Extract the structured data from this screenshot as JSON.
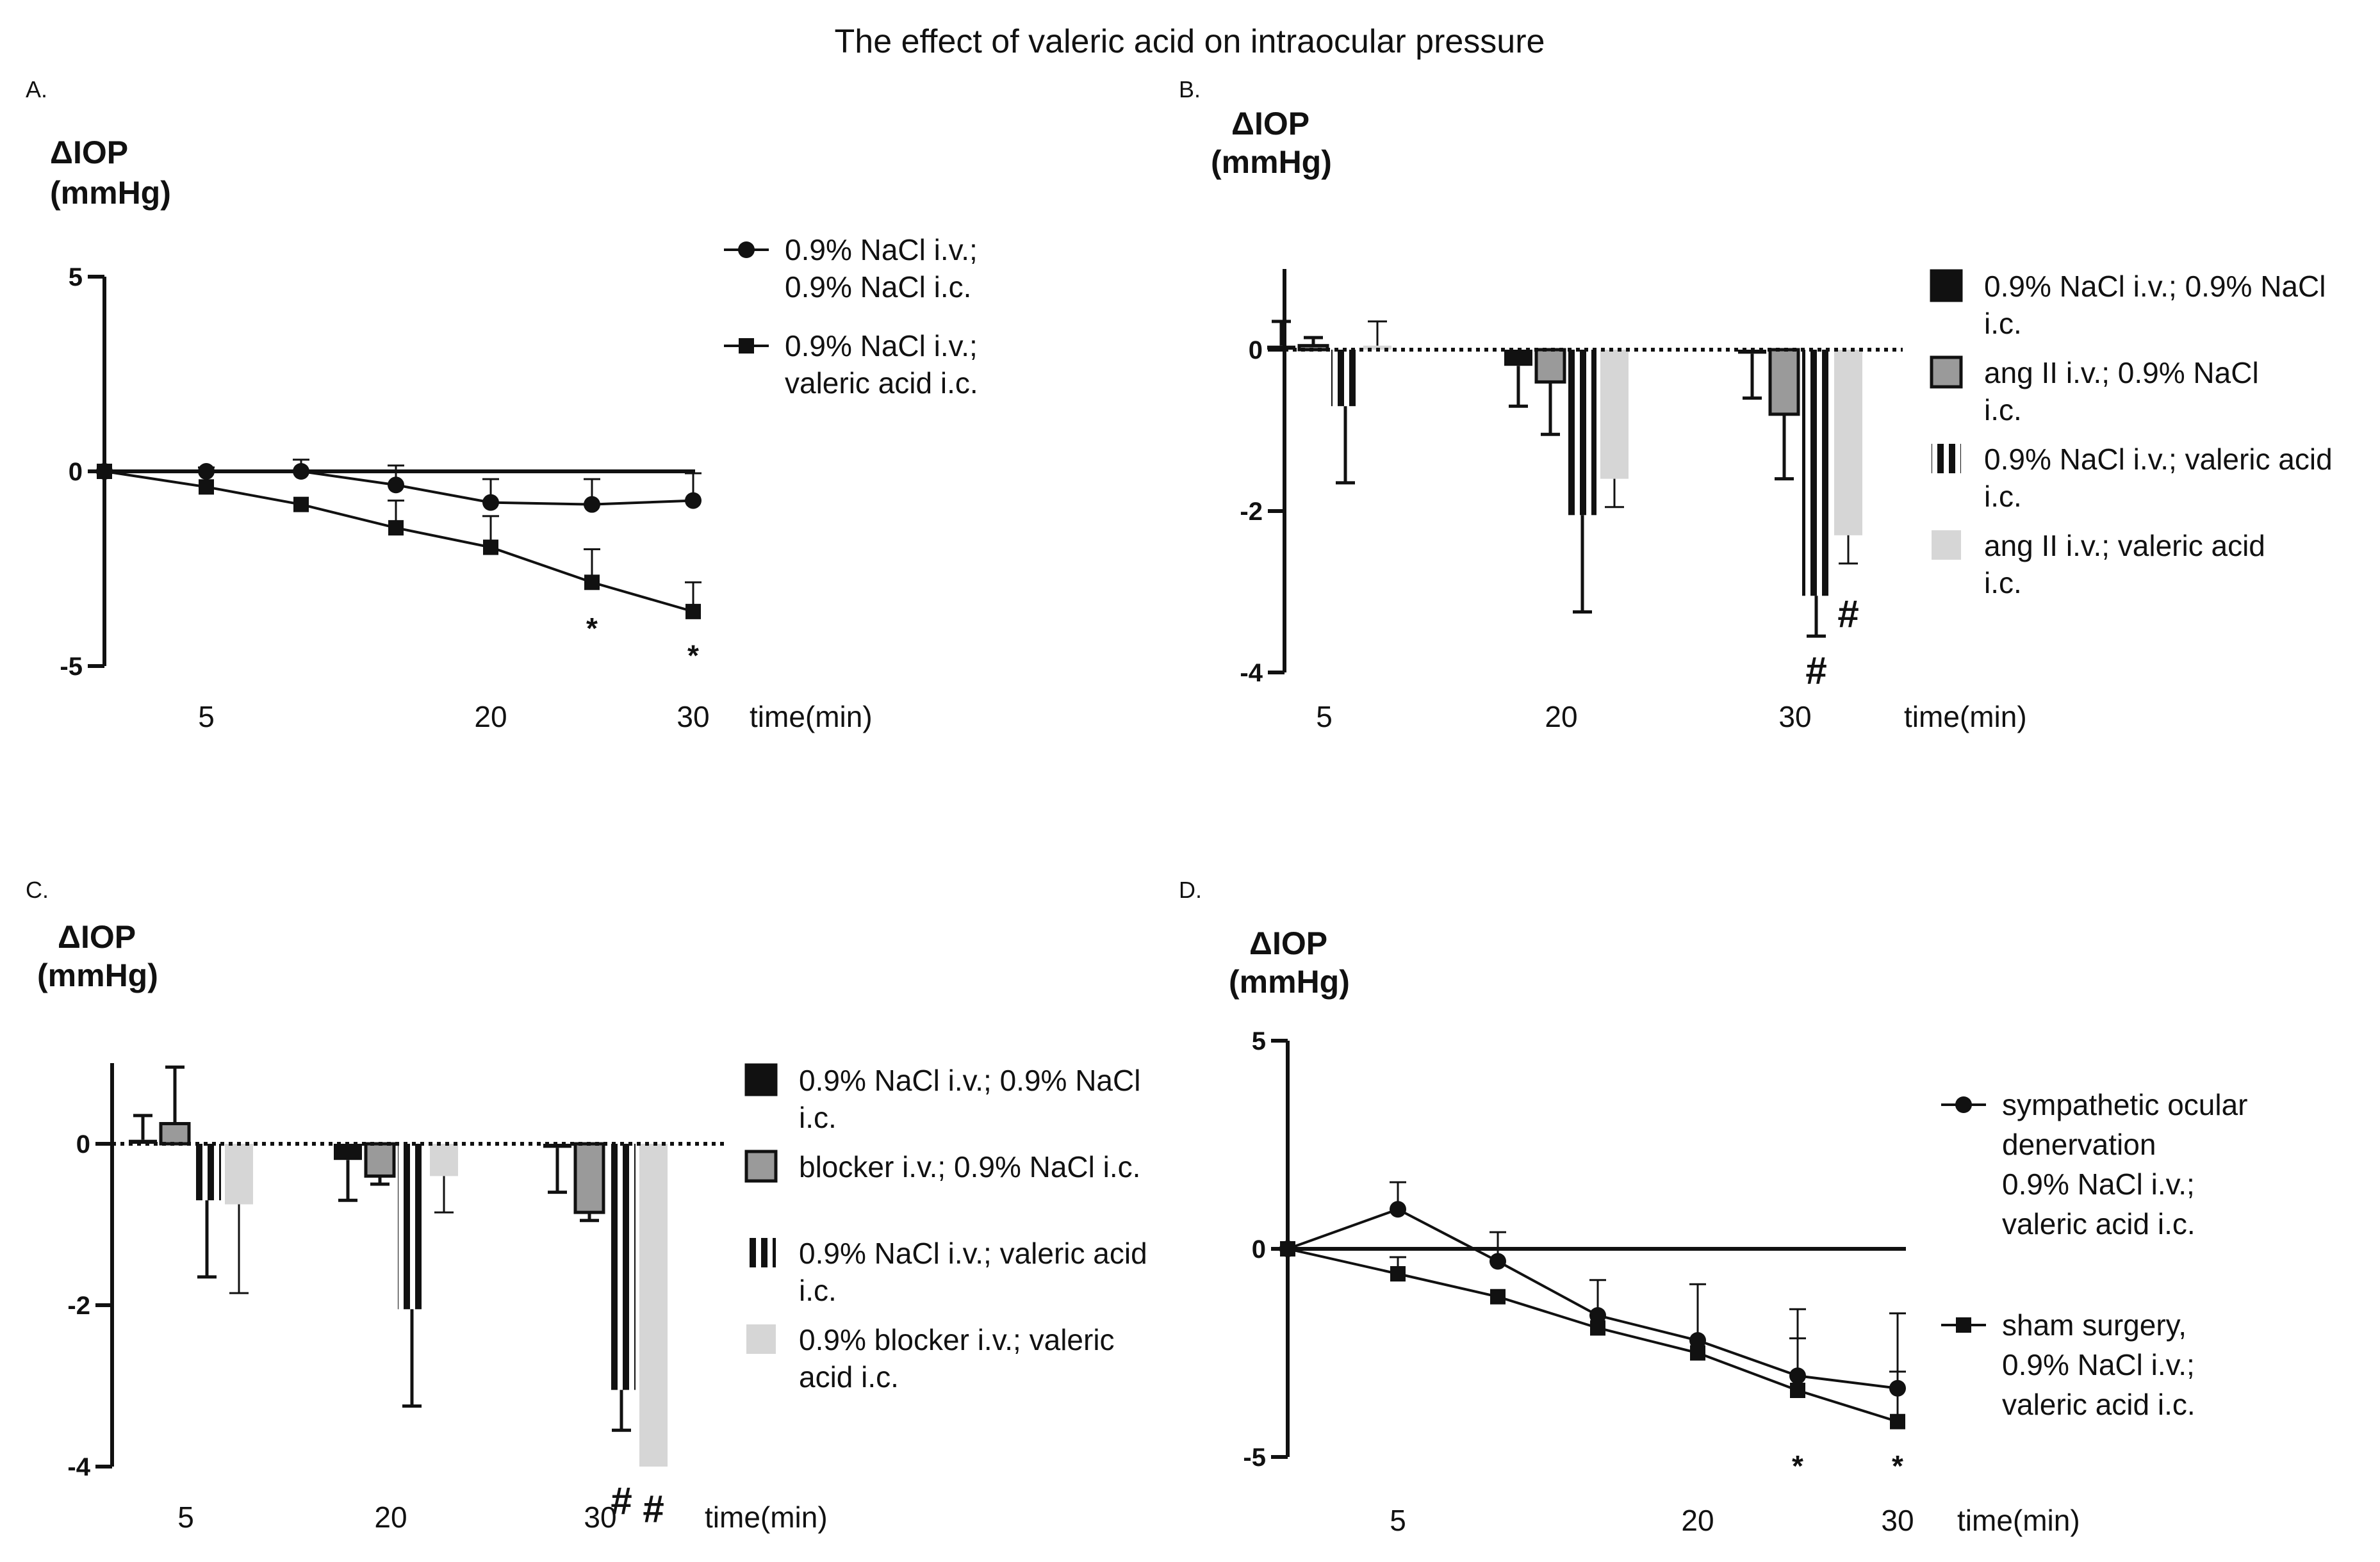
{
  "title": "The effect of valeric acid on intraocular pressure",
  "colors": {
    "black": "#111111",
    "gray": "#9a9a9a",
    "light": "#d6d6d6",
    "white": "#ffffff"
  },
  "chart_data": [
    {
      "panel": "A.",
      "type": "line",
      "ylabel_line1": "ΔIOP",
      "ylabel_line2": "(mmHg)",
      "xlabel": "time(min)",
      "ylim": [
        -5,
        5
      ],
      "xlim": [
        0,
        30
      ],
      "yticks": [
        5,
        0,
        -5
      ],
      "ytick_labels": [
        "5",
        "0",
        "-5"
      ],
      "xticks": [
        5,
        20,
        30
      ],
      "xtick_labels": [
        "5",
        "20",
        "30"
      ],
      "zero_line": "solid",
      "series": [
        {
          "name": "0.9% NaCl i.v.; 0.9% NaCl i.c.",
          "legend_lines": [
            "0.9% NaCl i.v.;",
            "0.9% NaCl i.c."
          ],
          "marker": "circle",
          "x": [
            0,
            5,
            10,
            15,
            20,
            25,
            30
          ],
          "y": [
            0,
            0,
            0,
            -0.35,
            -0.8,
            -0.85,
            -0.75
          ],
          "err": [
            0,
            0.1,
            0.3,
            0.5,
            0.6,
            0.65,
            0.7
          ]
        },
        {
          "name": "0.9% NaCl i.v.; valeric acid i.c.",
          "legend_lines": [
            "0.9% NaCl i.v.;",
            "valeric acid i.c."
          ],
          "marker": "square",
          "x": [
            0,
            5,
            10,
            15,
            20,
            25,
            30
          ],
          "y": [
            0,
            -0.4,
            -0.85,
            -1.45,
            -1.95,
            -2.85,
            -3.6
          ],
          "err": [
            0,
            0,
            0,
            0.7,
            0.8,
            0.85,
            0.75
          ]
        }
      ],
      "annotations": [
        {
          "x": 25,
          "y": -3.8,
          "text": "*"
        },
        {
          "x": 30,
          "y": -4.5,
          "text": "*"
        }
      ]
    },
    {
      "panel": "B.",
      "type": "bar",
      "ylabel_line1": "ΔIOP",
      "ylabel_line2": "(mmHg)",
      "xlabel": "time(min)",
      "ylim": [
        -4,
        1
      ],
      "yticks": [
        0,
        -2,
        -4
      ],
      "ytick_labels": [
        "0",
        "-2",
        "-4"
      ],
      "categories": [
        "5",
        "20",
        "30"
      ],
      "zero_line": "dotted",
      "series": [
        {
          "name": "0.9% NaCl i.v.; 0.9% NaCl i.c.",
          "legend_lines": [
            "0.9% NaCl i.v.; 0.9% NaCl",
            "i.c."
          ],
          "style": "black",
          "values": [
            0.05,
            -0.2,
            -0.05
          ],
          "err": [
            0.3,
            0.5,
            0.55
          ]
        },
        {
          "name": "ang II i.v.; 0.9% NaCl i.c.",
          "legend_lines": [
            "ang II i.v.; 0.9% NaCl",
            "i.c."
          ],
          "style": "gray",
          "values": [
            0.05,
            -0.4,
            -0.8
          ],
          "err": [
            0.1,
            0.65,
            0.8
          ]
        },
        {
          "name": "0.9% NaCl i.v.; valeric acid i.c.",
          "legend_lines": [
            "0.9% NaCl i.v.; valeric acid",
            "i.c."
          ],
          "style": "striped",
          "values": [
            -0.7,
            -2.05,
            -3.05
          ],
          "err": [
            0.95,
            1.2,
            0.5
          ]
        },
        {
          "name": "ang II i.v.; valeric acid i.c.",
          "legend_lines": [
            "ang II i.v.; valeric acid",
            "i.c."
          ],
          "style": "light",
          "values": [
            0.05,
            -1.6,
            -2.3
          ],
          "err": [
            0.3,
            0.35,
            0.35
          ]
        }
      ],
      "annotations": [
        {
          "category": 2,
          "series": 2,
          "y": -3.9,
          "text": "#"
        },
        {
          "category": 2,
          "series": 3,
          "y": -3.2,
          "text": "#"
        }
      ]
    },
    {
      "panel": "C.",
      "type": "bar",
      "ylabel_line1": "ΔIOP",
      "ylabel_line2": "(mmHg)",
      "xlabel": "time(min)",
      "ylim": [
        -4,
        1
      ],
      "yticks": [
        0,
        -2,
        -4
      ],
      "ytick_labels": [
        "0",
        "-2",
        "-4"
      ],
      "categories": [
        "5",
        "20",
        "30"
      ],
      "zero_line": "dotted",
      "series": [
        {
          "name": "0.9% NaCl i.v.; 0.9% NaCl i.c.",
          "legend_lines": [
            "0.9% NaCl i.v.; 0.9% NaCl",
            "i.c."
          ],
          "style": "black",
          "values": [
            0.05,
            -0.2,
            -0.05
          ],
          "err": [
            0.3,
            0.5,
            0.55
          ]
        },
        {
          "name": "blocker i.v.; 0.9% NaCl i.c.",
          "legend_lines": [
            "blocker i.v.; 0.9% NaCl i.c."
          ],
          "style": "gray",
          "values": [
            0.25,
            -0.4,
            -0.85
          ],
          "err": [
            0.7,
            0.1,
            0.1
          ]
        },
        {
          "name": "0.9% NaCl i.v.; valeric acid i.c.",
          "legend_lines": [
            "0.9% NaCl i.v.; valeric acid",
            "i.c."
          ],
          "style": "striped",
          "values": [
            -0.7,
            -2.05,
            -3.05
          ],
          "err": [
            0.95,
            1.2,
            0.5
          ]
        },
        {
          "name": "0.9% blocker i.v.; valeric acid i.c.",
          "legend_lines": [
            "0.9% blocker i.v.; valeric",
            "acid i.c."
          ],
          "style": "light",
          "values": [
            -0.75,
            -0.4,
            -4.0
          ],
          "err": [
            1.1,
            0.45,
            0
          ]
        }
      ],
      "annotations": [
        {
          "category": 2,
          "series": 2,
          "y": -4.35,
          "text": "#"
        },
        {
          "category": 2,
          "series": 3,
          "y": -4.45,
          "text": "#"
        }
      ]
    },
    {
      "panel": "D.",
      "type": "line",
      "ylabel_line1": "ΔIOP",
      "ylabel_line2": "(mmHg)",
      "xlabel": "time(min)",
      "ylim": [
        -5,
        5
      ],
      "xlim": [
        0,
        30
      ],
      "yticks": [
        5,
        0,
        -5
      ],
      "ytick_labels": [
        "5",
        "0",
        "-5"
      ],
      "xticks": [
        5,
        20,
        30
      ],
      "xtick_labels": [
        "5",
        "20",
        "30"
      ],
      "zero_line": "solid",
      "series": [
        {
          "name": "sympathetic ocular denervation 0.9% NaCl i.v.; valeric acid i.c.",
          "legend_lines": [
            "sympathetic ocular",
            "denervation",
            "0.9% NaCl i.v.;",
            "valeric acid i.c."
          ],
          "marker": "circle",
          "x": [
            0,
            5,
            10,
            15,
            20,
            25,
            30
          ],
          "y": [
            0,
            0.95,
            -0.3,
            -1.6,
            -2.2,
            -3.05,
            -3.35
          ],
          "err": [
            0,
            0.65,
            0.7,
            0.85,
            1.35,
            1.6,
            1.8
          ]
        },
        {
          "name": "sham surgery, 0.9% NaCl i.v.; valeric acid i.c.",
          "legend_lines": [
            "sham surgery,",
            "0.9% NaCl i.v.;",
            "valeric acid i.c."
          ],
          "marker": "square",
          "x": [
            0,
            5,
            10,
            15,
            20,
            25,
            30
          ],
          "y": [
            0,
            -0.6,
            -1.15,
            -1.9,
            -2.5,
            -3.4,
            -4.15
          ],
          "err": [
            0,
            0.4,
            0,
            0,
            0,
            1.25,
            1.2
          ]
        }
      ],
      "annotations": [
        {
          "x": 25,
          "y": -5.0,
          "text": "*"
        },
        {
          "x": 30,
          "y": -5.0,
          "text": "*"
        }
      ]
    }
  ]
}
